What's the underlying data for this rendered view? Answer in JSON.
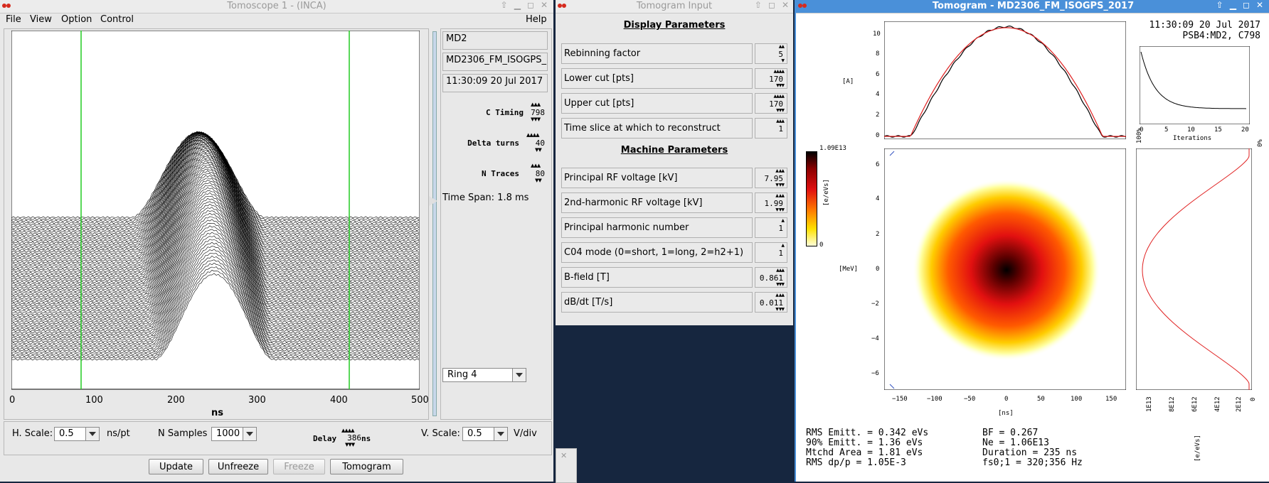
{
  "scope_window": {
    "title": "Tomoscope 1 - (INCA)",
    "menu": [
      "File",
      "View",
      "Option",
      "Control"
    ],
    "help": "Help",
    "machine": "MD2",
    "cycle": "MD2306_FM_ISOGPS_...",
    "timestamp": "11:30:09 20 Jul 2017",
    "c_timing_label": "C Timing",
    "c_timing": "798",
    "delta_turns_label": "Delta turns",
    "delta_turns": "40",
    "n_traces_label": "N Traces",
    "n_traces": "80",
    "time_span": "Time Span: 1.8 ms",
    "ring": "Ring 4",
    "hscale_label": "H. Scale:",
    "hscale": "0.5",
    "hscale_unit": "ns/pt",
    "nsamples_label": "N Samples",
    "nsamples": "1000",
    "delay_label": "Delay",
    "delay": "386",
    "delay_unit": "ns",
    "vscale_label": "V. Scale:",
    "vscale": "0.5",
    "vscale_unit": "V/div",
    "buttons": {
      "update": "Update",
      "unfreeze": "Unfreeze",
      "freeze": "Freeze",
      "tomogram": "Tomogram"
    },
    "xaxis_label": "ns",
    "xticks": [
      "0",
      "100",
      "200",
      "300",
      "400",
      "500"
    ]
  },
  "input_window": {
    "title": "Tomogram Input",
    "display_heading": "Display Parameters",
    "display_params": [
      {
        "label": "Rebinning factor",
        "value": "5"
      },
      {
        "label": "Lower cut [pts]",
        "value": "170"
      },
      {
        "label": "Upper cut [pts]",
        "value": "170"
      },
      {
        "label": "Time slice at which to reconstruct",
        "value": "1"
      }
    ],
    "machine_heading": "Machine Parameters",
    "machine_params": [
      {
        "label": "Principal RF voltage [kV]",
        "value": "7.95"
      },
      {
        "label": "2nd-harmonic RF voltage [kV]",
        "value": "1.99"
      },
      {
        "label": "Principal harmonic number",
        "value": "1"
      },
      {
        "label": "C04 mode (0=short, 1=long, 2=h2+1)",
        "value": "1"
      },
      {
        "label": "B-field [T]",
        "value": "0.861"
      },
      {
        "label": "dB/dt [T/s]",
        "value": "0.011"
      }
    ]
  },
  "tomogram_window": {
    "title": "Tomogram - MD2306_FM_ISOGPS_2017",
    "time": "11:30:09 20 Jul 2017",
    "ring_cycle": "PSB4:MD2, C798",
    "colorbar_max": "1.09E13",
    "colorbar_min": "0",
    "colorbar_unit": "[e/eVs]",
    "profile_unit": "[A]",
    "profile_yticks": [
      "10",
      "8",
      "6",
      "4",
      "2",
      "0"
    ],
    "phase_unit": "[MeV]",
    "phase_yticks": [
      "6",
      "4",
      "2",
      "0",
      "−2",
      "−4",
      "−6"
    ],
    "phase_xticks": [
      "−150",
      "−100",
      "−50",
      "0",
      "50",
      "100",
      "150"
    ],
    "phase_xunit": "[ns]",
    "iter_xticks": [
      "0",
      "5",
      "10",
      "15",
      "20"
    ],
    "iter_label": "Iterations",
    "iter_left": "100%",
    "iter_right": "0%",
    "energy_ticks": [
      "1E13",
      "8E12",
      "6E12",
      "4E12",
      "2E12",
      "0"
    ],
    "energy_unit": "[e/eVs]",
    "stats_left": [
      "RMS Emitt. = 0.342 eVs",
      "90% Emitt. = 1.36 eVs",
      "Mtchd Area = 1.81 eVs",
      "RMS dp/p = 1.05E-3"
    ],
    "stats_right": [
      "BF = 0.267",
      "Ne = 1.06E13",
      "Duration = 235 ns",
      "fs0;1 = 320;356 Hz"
    ]
  },
  "colors": {
    "accent": "#4a90d9",
    "cursor_line": "#22cc22",
    "fit_line": "#e02020"
  }
}
